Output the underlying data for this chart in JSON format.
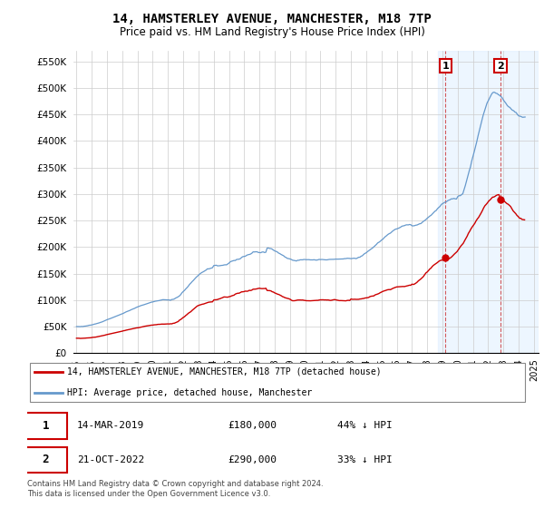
{
  "title": "14, HAMSTERLEY AVENUE, MANCHESTER, M18 7TP",
  "subtitle": "Price paid vs. HM Land Registry's House Price Index (HPI)",
  "title_fontsize": 10,
  "subtitle_fontsize": 8.5,
  "ylabel_ticks": [
    "£0",
    "£50K",
    "£100K",
    "£150K",
    "£200K",
    "£250K",
    "£300K",
    "£350K",
    "£400K",
    "£450K",
    "£500K",
    "£550K"
  ],
  "ytick_values": [
    0,
    50000,
    100000,
    150000,
    200000,
    250000,
    300000,
    350000,
    400000,
    450000,
    500000,
    550000
  ],
  "ylim": [
    0,
    570000
  ],
  "xlim_start": 1994.8,
  "xlim_end": 2025.3,
  "hpi_color": "#6699cc",
  "price_color": "#cc0000",
  "annotation_color": "#cc0000",
  "legend_label_price": "14, HAMSTERLEY AVENUE, MANCHESTER, M18 7TP (detached house)",
  "legend_label_hpi": "HPI: Average price, detached house, Manchester",
  "point1_label": "1",
  "point1_date": "14-MAR-2019",
  "point1_price": "£180,000",
  "point1_hpi": "44% ↓ HPI",
  "point1_x": 2019.2,
  "point1_y": 180000,
  "point2_label": "2",
  "point2_date": "21-OCT-2022",
  "point2_price": "£290,000",
  "point2_hpi": "33% ↓ HPI",
  "point2_x": 2022.8,
  "point2_y": 290000,
  "footnote": "Contains HM Land Registry data © Crown copyright and database right 2024.\nThis data is licensed under the Open Government Licence v3.0.",
  "bg_highlight_x1": 2018.7,
  "bg_highlight_x2": 2025.3,
  "bg_highlight_color": "#ddeeff",
  "xtick_years": [
    1995,
    1996,
    1997,
    1998,
    1999,
    2000,
    2001,
    2002,
    2003,
    2004,
    2005,
    2006,
    2007,
    2008,
    2009,
    2010,
    2011,
    2012,
    2013,
    2014,
    2015,
    2016,
    2017,
    2018,
    2019,
    2020,
    2021,
    2022,
    2023,
    2024,
    2025
  ]
}
